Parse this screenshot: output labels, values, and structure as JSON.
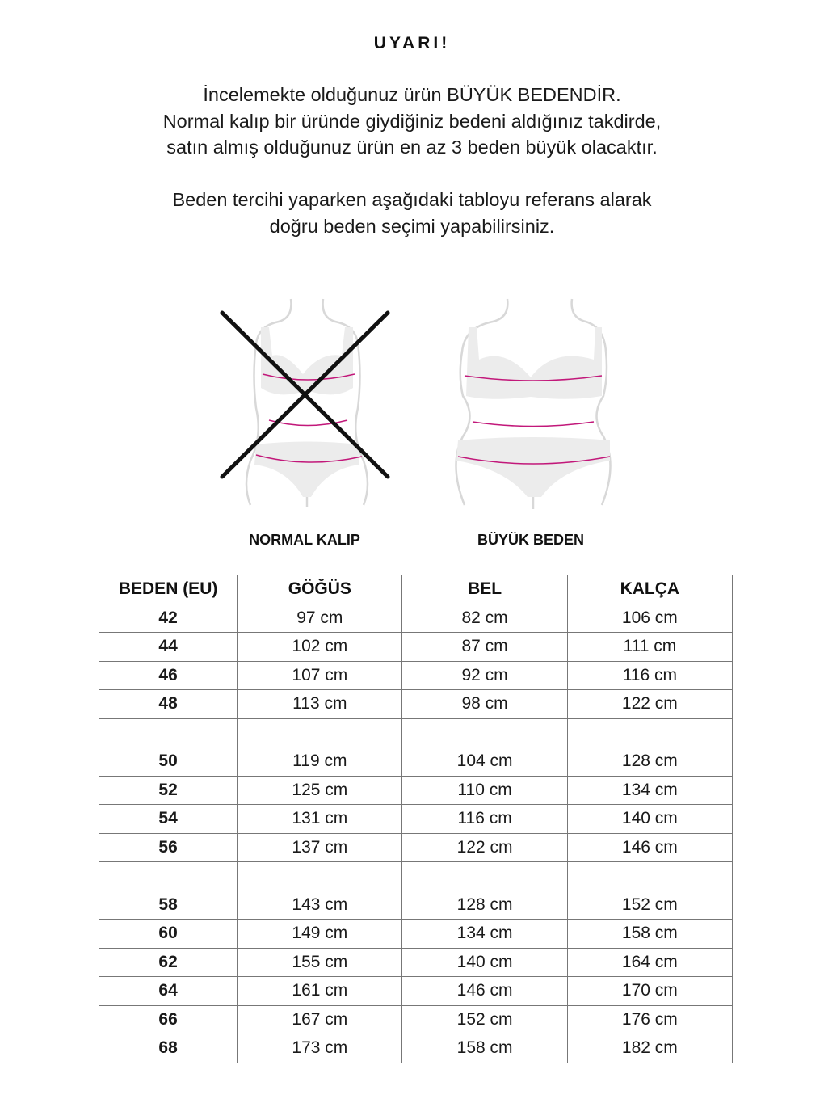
{
  "warning": {
    "title": "UYARI!",
    "line1_pre": "İncelemekte olduğunuz ürün ",
    "line1_emph": "BÜYÜK BEDENDİR",
    "line1_post": ".",
    "line2": "Normal kalıp bir üründe giydiğiniz bedeni aldığınız takdirde,",
    "line3": "satın almış olduğunuz ürün en az 3 beden büyük olacaktır.",
    "line4": "Beden tercihi yaparken aşağıdaki tabloyu referans alarak",
    "line5": "doğru beden seçimi yapabilirsiniz."
  },
  "figures": {
    "normal_label": "NORMAL KALIP",
    "plus_label": "BÜYÜK BEDEN",
    "measure_color": "#c2187a"
  },
  "table": {
    "headers": [
      "BEDEN (EU)",
      "GÖĞÜS",
      "BEL",
      "KALÇA"
    ],
    "rows": [
      [
        "42",
        "97 cm",
        "82 cm",
        "106 cm"
      ],
      [
        "44",
        "102 cm",
        "87 cm",
        "111 cm"
      ],
      [
        "46",
        "107 cm",
        "92 cm",
        "116 cm"
      ],
      [
        "48",
        "113 cm",
        "98 cm",
        "122 cm"
      ],
      [
        "",
        "",
        "",
        ""
      ],
      [
        "50",
        "119 cm",
        "104 cm",
        "128 cm"
      ],
      [
        "52",
        "125 cm",
        "110 cm",
        "134 cm"
      ],
      [
        "54",
        "131 cm",
        "116 cm",
        "140 cm"
      ],
      [
        "56",
        "137 cm",
        "122 cm",
        "146 cm"
      ],
      [
        "",
        "",
        "",
        ""
      ],
      [
        "58",
        "143 cm",
        "128 cm",
        "152 cm"
      ],
      [
        "60",
        "149 cm",
        "134 cm",
        "158 cm"
      ],
      [
        "62",
        "155 cm",
        "140 cm",
        "164 cm"
      ],
      [
        "64",
        "161 cm",
        "146 cm",
        "170 cm"
      ],
      [
        "66",
        "167 cm",
        "152 cm",
        "176 cm"
      ],
      [
        "68",
        "173 cm",
        "158 cm",
        "182 cm"
      ]
    ]
  }
}
